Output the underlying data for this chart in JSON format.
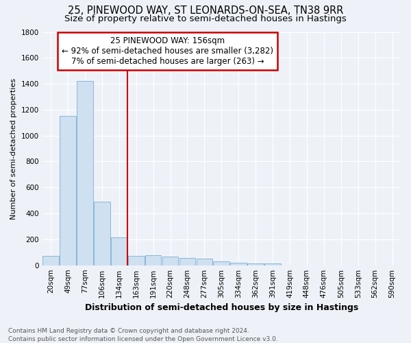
{
  "title": "25, PINEWOOD WAY, ST LEONARDS-ON-SEA, TN38 9RR",
  "subtitle": "Size of property relative to semi-detached houses in Hastings",
  "xlabel": "Distribution of semi-detached houses by size in Hastings",
  "ylabel": "Number of semi-detached properties",
  "categories": [
    "20sqm",
    "49sqm",
    "77sqm",
    "106sqm",
    "134sqm",
    "163sqm",
    "191sqm",
    "220sqm",
    "248sqm",
    "277sqm",
    "305sqm",
    "334sqm",
    "362sqm",
    "391sqm",
    "419sqm",
    "448sqm",
    "476sqm",
    "505sqm",
    "533sqm",
    "562sqm",
    "590sqm"
  ],
  "values": [
    75,
    1150,
    1420,
    490,
    215,
    75,
    80,
    65,
    55,
    50,
    30,
    20,
    15,
    15,
    0,
    0,
    0,
    0,
    0,
    0,
    0
  ],
  "bar_color": "#cfe0f0",
  "bar_edge_color": "#7ab0d4",
  "vline_index": 5,
  "annotation_line1": "25 PINEWOOD WAY: 156sqm",
  "annotation_line2": "← 92% of semi-detached houses are smaller (3,282)",
  "annotation_line3": "7% of semi-detached houses are larger (263) →",
  "annotation_box_color": "#ffffff",
  "annotation_box_edge": "#cc0000",
  "vline_color": "#cc0000",
  "footer_line1": "Contains HM Land Registry data © Crown copyright and database right 2024.",
  "footer_line2": "Contains public sector information licensed under the Open Government Licence v3.0.",
  "ylim": [
    0,
    1800
  ],
  "yticks": [
    0,
    200,
    400,
    600,
    800,
    1000,
    1200,
    1400,
    1600,
    1800
  ],
  "background_color": "#eef2f8",
  "grid_color": "#ffffff",
  "title_fontsize": 10.5,
  "subtitle_fontsize": 9.5,
  "xlabel_fontsize": 9,
  "ylabel_fontsize": 8,
  "tick_fontsize": 7.5,
  "annotation_fontsize": 8.5,
  "footer_fontsize": 6.5
}
